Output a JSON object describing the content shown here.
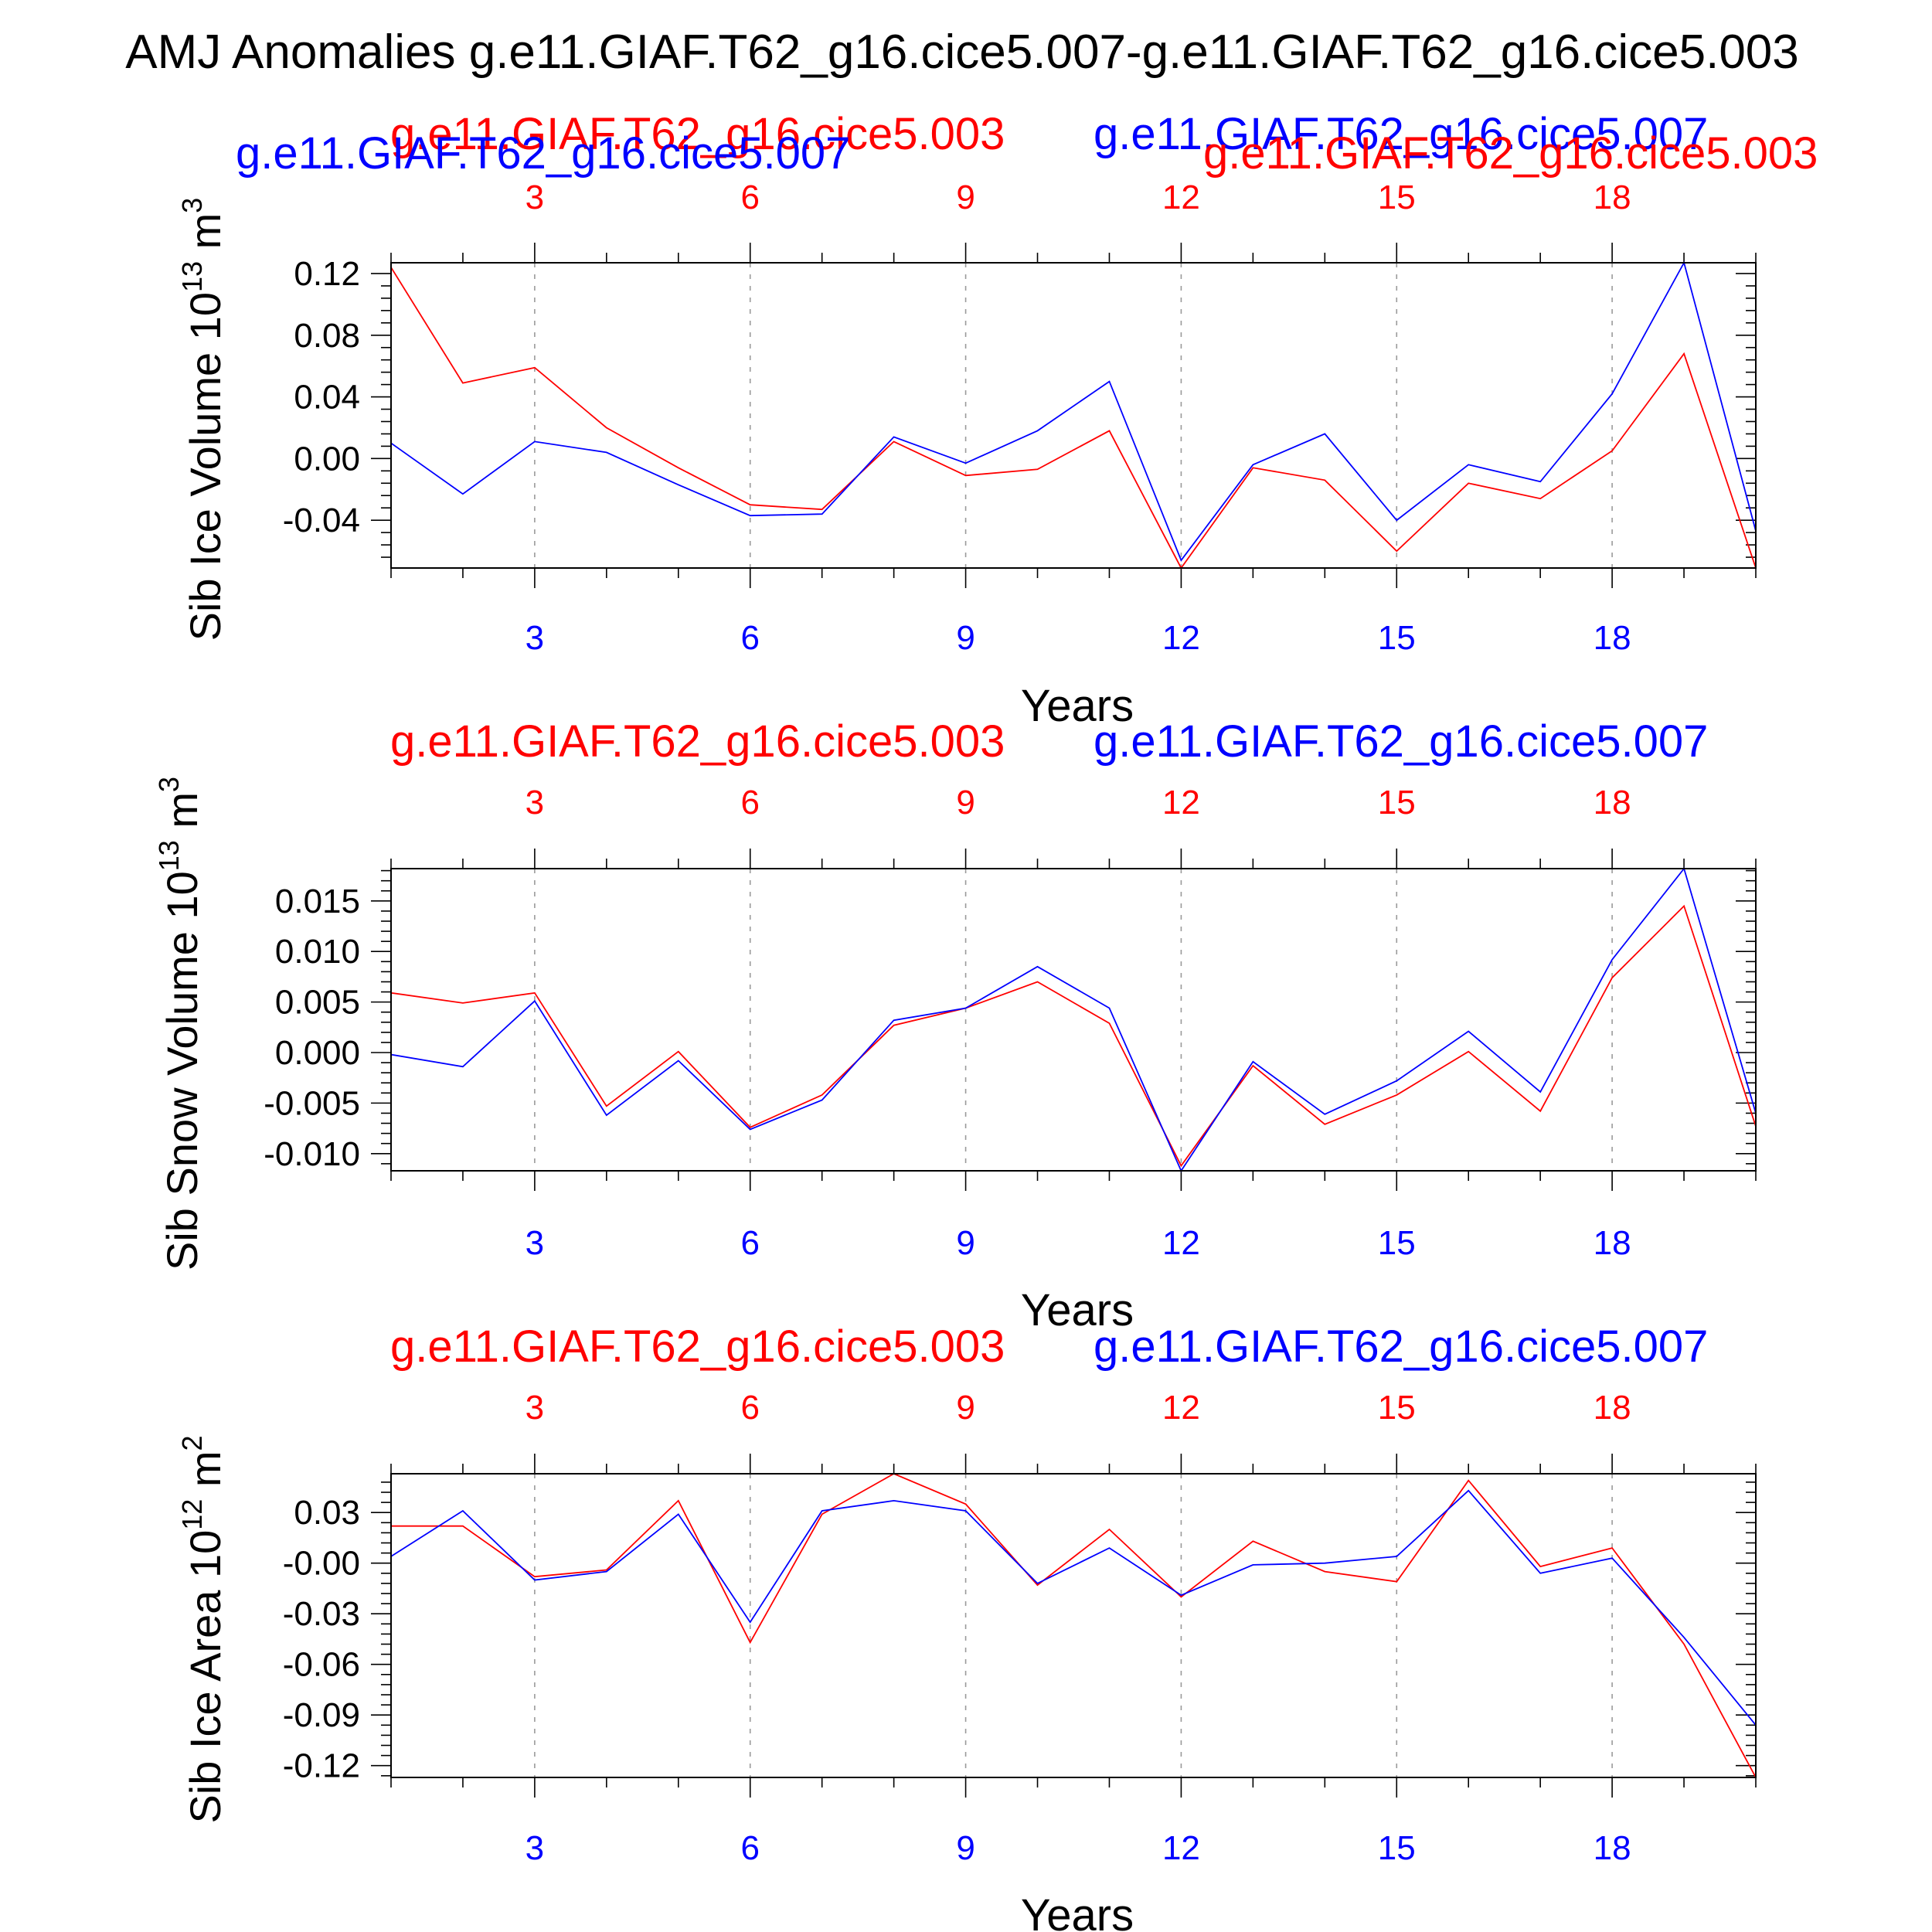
{
  "title": "AMJ Anomalies g.e11.GIAF.T62_g16.cice5.007-g.e11.GIAF.T62_g16.cice5.003",
  "colors": {
    "red": "#ff0000",
    "blue": "#0000ff",
    "frame": "#000000",
    "grid": "#9a9a9a"
  },
  "chart_data": [
    {
      "type": "line",
      "ylabel": "Sib Ice Volume 10",
      "yexp": "13",
      "yunit": " m",
      "yunitexp": "3",
      "xlabel": "Years",
      "xlim": [
        1,
        20
      ],
      "ylim": [
        -0.071,
        0.127
      ],
      "yticks": [
        0.12,
        0.08,
        0.04,
        0.0,
        -0.04
      ],
      "yticklabels": [
        "0.12",
        "0.08",
        "0.04",
        "0.00",
        "-0.04"
      ],
      "xticks": [
        3,
        6,
        9,
        12,
        15,
        18
      ],
      "xticklabels": [
        "3",
        "6",
        "9",
        "12",
        "15",
        "18"
      ],
      "series": [
        {
          "name": "g.e11.GIAF.T62_g16.cice5.003",
          "color": "red",
          "values": [
            0.124,
            0.049,
            0.059,
            0.02,
            -0.006,
            -0.03,
            -0.033,
            0.011,
            -0.011,
            -0.007,
            0.018,
            -0.071,
            -0.006,
            -0.014,
            -0.06,
            -0.016,
            -0.026,
            0.005,
            0.068,
            -0.071
          ]
        },
        {
          "name": "g.e11.GIAF.T62_g16.cice5.007",
          "color": "blue",
          "values": [
            0.01,
            -0.023,
            0.011,
            0.004,
            -0.017,
            -0.037,
            -0.036,
            0.014,
            -0.003,
            0.018,
            0.05,
            -0.066,
            -0.004,
            0.016,
            -0.04,
            -0.004,
            -0.015,
            0.042,
            0.127,
            -0.047
          ]
        }
      ]
    },
    {
      "type": "line",
      "ylabel": "Sib Snow Volume 10",
      "yexp": "13",
      "yunit": " m",
      "yunitexp": "3",
      "xlabel": "Years",
      "xlim": [
        1,
        20
      ],
      "ylim": [
        -0.0117,
        0.0182
      ],
      "yticks": [
        0.015,
        0.01,
        0.005,
        0.0,
        -0.005,
        -0.01
      ],
      "yticklabels": [
        "0.015",
        "0.010",
        "0.005",
        "0.000",
        "-0.005",
        "-0.010"
      ],
      "xticks": [
        3,
        6,
        9,
        12,
        15,
        18
      ],
      "xticklabels": [
        "3",
        "6",
        "9",
        "12",
        "15",
        "18"
      ],
      "series": [
        {
          "name": "g.e11.GIAF.T62_g16.cice5.003",
          "color": "red",
          "values": [
            0.0059,
            0.0049,
            0.0059,
            -0.0053,
            0.0001,
            -0.0074,
            -0.0042,
            0.0027,
            0.0044,
            0.007,
            0.0029,
            -0.0112,
            -0.0013,
            -0.0071,
            -0.0042,
            0.0001,
            -0.0058,
            0.0074,
            0.0145,
            -0.0073
          ]
        },
        {
          "name": "g.e11.GIAF.T62_g16.cice5.007",
          "color": "blue",
          "values": [
            -0.0002,
            -0.0014,
            0.0051,
            -0.0062,
            -0.0008,
            -0.0076,
            -0.0047,
            0.0032,
            0.0044,
            0.0085,
            0.0044,
            -0.0117,
            -0.0009,
            -0.0061,
            -0.0028,
            0.0021,
            -0.0039,
            0.0092,
            0.0182,
            -0.006
          ]
        }
      ]
    },
    {
      "type": "line",
      "ylabel": "Sib Ice Area 10",
      "yexp": "12",
      "yunit": " m",
      "yunitexp": "2",
      "xlabel": "Years",
      "xlim": [
        1,
        20
      ],
      "ylim": [
        -0.127,
        0.053
      ],
      "yticks": [
        0.03,
        0.0,
        -0.03,
        -0.06,
        -0.09,
        -0.12
      ],
      "yticklabels": [
        "0.03",
        "-0.00",
        "-0.03",
        "-0.06",
        "-0.09",
        "-0.12"
      ],
      "xticks": [
        3,
        6,
        9,
        12,
        15,
        18
      ],
      "xticklabels": [
        "3",
        "6",
        "9",
        "12",
        "15",
        "18"
      ],
      "series": [
        {
          "name": "g.e11.GIAF.T62_g16.cice5.003",
          "color": "red",
          "values": [
            0.022,
            0.022,
            -0.008,
            -0.004,
            0.037,
            -0.047,
            0.029,
            0.053,
            0.035,
            -0.013,
            0.02,
            -0.02,
            0.013,
            -0.005,
            -0.011,
            0.049,
            -0.002,
            0.009,
            -0.048,
            -0.127
          ]
        },
        {
          "name": "g.e11.GIAF.T62_g16.cice5.007",
          "color": "blue",
          "values": [
            0.004,
            0.031,
            -0.01,
            -0.005,
            0.029,
            -0.035,
            0.031,
            0.037,
            0.031,
            -0.012,
            0.009,
            -0.019,
            -0.001,
            0.0,
            0.004,
            0.043,
            -0.006,
            0.003,
            -0.044,
            -0.096
          ]
        }
      ]
    }
  ]
}
